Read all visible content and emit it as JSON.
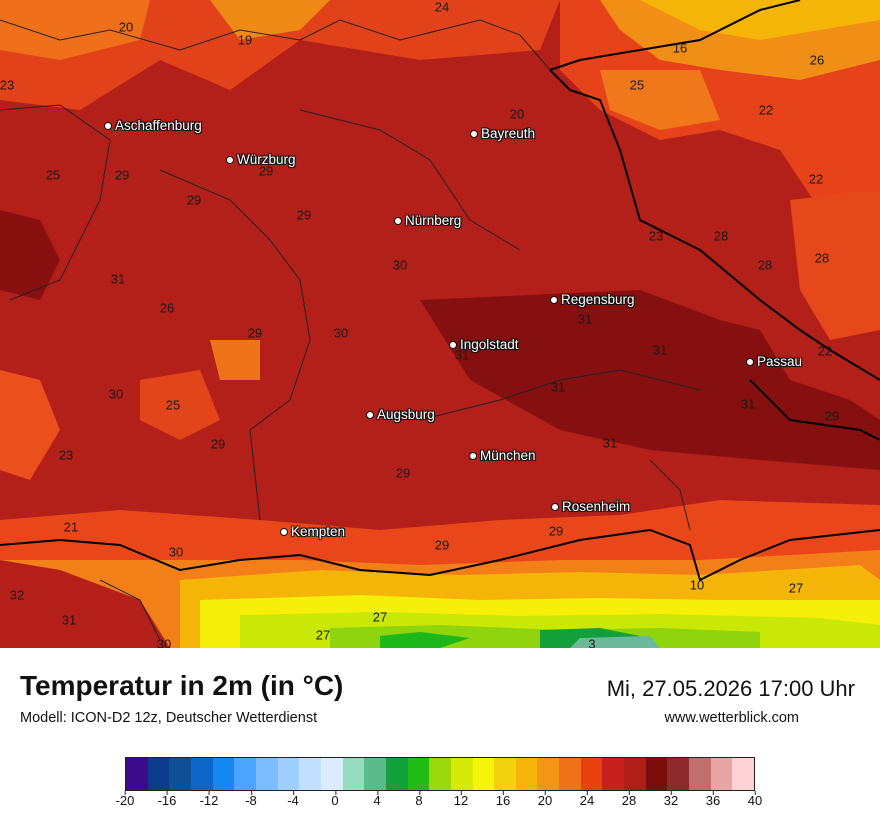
{
  "title": "Temperatur in 2m (in °C)",
  "model": "Modell: ICON-D2 12z, Deutscher Wetterdienst",
  "datetime": "Mi, 27.05.2026 17:00 Uhr",
  "website": "www.wetterblick.com",
  "cities": [
    {
      "name": "Aschaffenburg"
    },
    {
      "name": "Bayreuth"
    },
    {
      "name": "Würzburg"
    },
    {
      "name": "Nürnberg"
    },
    {
      "name": "Regensburg"
    },
    {
      "name": "Ingolstadt"
    },
    {
      "name": "Passau"
    },
    {
      "name": "Augsburg"
    },
    {
      "name": "München"
    },
    {
      "name": "Rosenheim"
    },
    {
      "name": "Kempten"
    }
  ],
  "temperature_labels": [
    "24",
    "20",
    "19",
    "16",
    "26",
    "23",
    "25",
    "20",
    "22",
    "25",
    "29",
    "29",
    "22",
    "29",
    "29",
    "23",
    "28",
    "30",
    "28",
    "28",
    "31",
    "26",
    "31",
    "29",
    "30",
    "31",
    "22",
    "31",
    "30",
    "25",
    "31",
    "31",
    "29",
    "31",
    "23",
    "29",
    "21",
    "29",
    "29",
    "30",
    "29",
    "32",
    "31",
    "27",
    "27",
    "10",
    "27",
    "30",
    "3"
  ],
  "colorbar": {
    "ticks": [
      "-20",
      "-16",
      "-12",
      "-8",
      "-4",
      "0",
      "4",
      "8",
      "12",
      "16",
      "20",
      "24",
      "28",
      "32",
      "36",
      "40"
    ],
    "colors": [
      "#3d0a8c",
      "#0d3b8c",
      "#0e4f96",
      "#0b66c8",
      "#1488f0",
      "#4aa6ff",
      "#7dbdff",
      "#9fcfff",
      "#c1e0ff",
      "#dcecff",
      "#95dcbd",
      "#5dbb8b",
      "#12a03c",
      "#21bc17",
      "#9ad70b",
      "#d5ea05",
      "#f5f50a",
      "#f2d20c",
      "#f5b508",
      "#f39515",
      "#f0711a",
      "#e9420f",
      "#c8201b",
      "#b01e18",
      "#7d0d0d",
      "#8c2a2a",
      "#c06e6e",
      "#e6a6a6",
      "#fcd2d2"
    ]
  }
}
